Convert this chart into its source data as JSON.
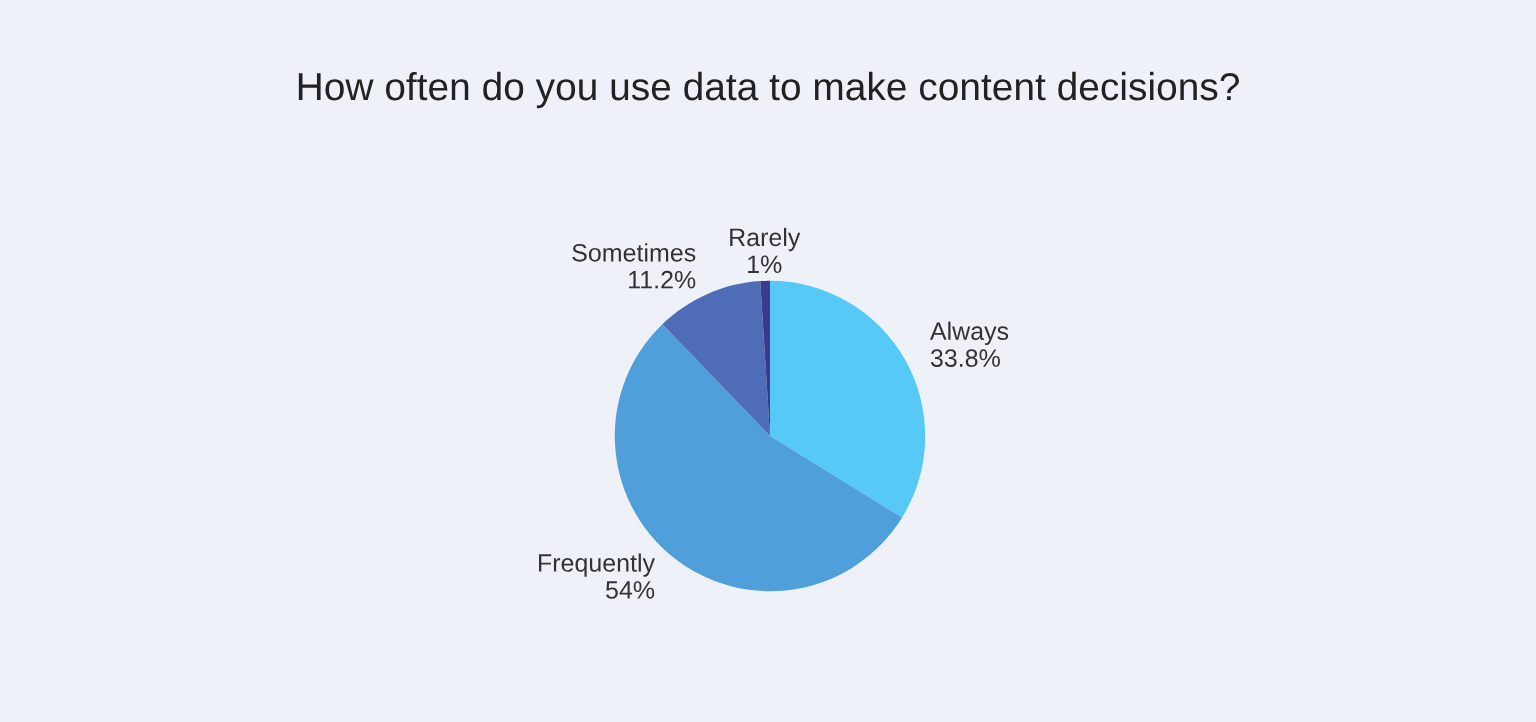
{
  "chart_data": {
    "type": "pie",
    "title": "How often do you use data to make content decisions?",
    "categories": [
      "Always",
      "Frequently",
      "Sometimes",
      "Rarely"
    ],
    "values": [
      33.8,
      54,
      11.2,
      1
    ],
    "value_labels": [
      "33.8%",
      "54%",
      "11.2%",
      "1%"
    ],
    "colors": [
      "#56c9f6",
      "#4f9fdb",
      "#4f6db6",
      "#3b3a8c"
    ],
    "legend": false
  }
}
